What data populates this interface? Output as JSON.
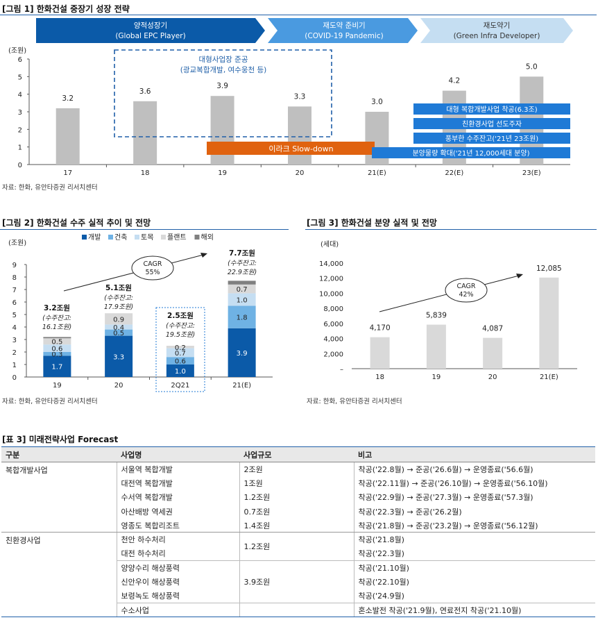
{
  "fig1": {
    "title": "[그림 1] 한화건설 중장기 성장 전략",
    "unit": "(조원)",
    "phases": [
      {
        "name": "양적성장기",
        "sub": "(Global EPC Player)"
      },
      {
        "name": "재도약 준비기",
        "sub": "(COVID-19 Pandemic)"
      },
      {
        "name": "재도약기",
        "sub": "(Green Infra Developer)"
      }
    ],
    "dashed_note": [
      "대형사업장 준공",
      "(광교복합개발, 여수웅천 등)"
    ],
    "iraq_label": "이라크 Slow-down",
    "blue_boxes": [
      "대형 복합개발사업 착공(6.3조)",
      "친환경사업 선도주자",
      "풍부한 수주잔고('21년 23조원)",
      "분양물량 확대('21년 12,000세대 분양)"
    ],
    "source": "자료: 한화, 유안타증권 리서치센터"
  },
  "fig2": {
    "title": "[그림 2] 한화건설 수주 실적 추이 및 전망",
    "unit": "(조원)",
    "totals": [
      "3.2조원",
      "5.1조원",
      "2.5조원",
      "7.7조원"
    ],
    "backlogs": [
      [
        "(수주잔고:",
        "16.1조원)"
      ],
      [
        "(수주잔고:",
        "17.9조원)"
      ],
      [
        "(수주잔고:",
        "19.5조원)"
      ],
      [
        "(수주잔고:",
        "22.9조원)"
      ]
    ],
    "cagr": [
      "CAGR",
      "55%"
    ],
    "source": "자료: 한화, 유안타증권 리서치센터"
  },
  "fig3": {
    "title": "[그림 3] 한화건설 분양 실적 및 전망",
    "unit": "(세대)",
    "cagr": [
      "CAGR",
      "42%"
    ],
    "source": "자료: 한화, 유안타증권 리서치센터"
  },
  "chart_data": [
    {
      "type": "bar",
      "categories": [
        "17",
        "18",
        "19",
        "20",
        "21(E)",
        "22(E)",
        "23(E)"
      ],
      "values": [
        3.2,
        3.6,
        3.9,
        3.3,
        3.0,
        4.2,
        5.0
      ],
      "value_labels": [
        "3.2",
        "3.6",
        "3.9",
        "3.3",
        "3.0",
        "4.2",
        "5.0"
      ],
      "ylim": [
        0,
        6
      ],
      "yticks": [
        "0",
        "1",
        "2",
        "3",
        "4",
        "5",
        "6"
      ],
      "grid": false,
      "color": "#bfbfbf"
    },
    {
      "type": "bar",
      "stacked": true,
      "categories": [
        "19",
        "20",
        "2Q21",
        "21(E)"
      ],
      "ylim": [
        0,
        9
      ],
      "yticks": [
        "0",
        "1",
        "2",
        "3",
        "4",
        "5",
        "6",
        "7",
        "8",
        "9"
      ],
      "legend_position": "top",
      "series": [
        {
          "name": "개발",
          "color": "#0b5aa8",
          "values": [
            1.7,
            3.3,
            1.0,
            3.9
          ],
          "labels": [
            "1.7",
            "3.3",
            "1.0",
            "3.9"
          ]
        },
        {
          "name": "건축",
          "color": "#6fb2e4",
          "values": [
            0.3,
            0.5,
            0.6,
            1.8
          ],
          "labels": [
            "0.3",
            "0.5",
            "0.6",
            "1.8"
          ]
        },
        {
          "name": "토목",
          "color": "#c5def2",
          "values": [
            0.6,
            0.4,
            0.7,
            1.0
          ],
          "labels": [
            "0.6",
            "0.4",
            "0.7",
            "1.0"
          ]
        },
        {
          "name": "플랜트",
          "color": "#d9d9d9",
          "values": [
            0.5,
            0.9,
            0.2,
            0.7
          ],
          "labels": [
            "0.5",
            "0.9",
            "0.2",
            "0.7"
          ]
        },
        {
          "name": "해외",
          "color": "#808080",
          "values": [
            0.1,
            0.0,
            0.0,
            0.3
          ],
          "labels": [
            "",
            "",
            "",
            ""
          ]
        }
      ]
    },
    {
      "type": "bar",
      "categories": [
        "18",
        "19",
        "20",
        "21(E)"
      ],
      "values": [
        4170,
        5839,
        4087,
        12085
      ],
      "value_labels": [
        "4,170",
        "5,839",
        "4,087",
        "12,085"
      ],
      "ylim": [
        0,
        14000
      ],
      "yticks": [
        "–",
        "2,000",
        "4,000",
        "6,000",
        "8,000",
        "10,000",
        "12,000",
        "14,000"
      ],
      "color": "#d9d9d9"
    }
  ],
  "table": {
    "title": "[표 3] 미래전략사업 Forecast",
    "headers": [
      "구분",
      "사업명",
      "사업규모",
      "비고"
    ],
    "groups": [
      {
        "category": "복합개발사업",
        "rows": [
          {
            "name": "서울역 복합개발",
            "scale": "2조원",
            "note": "착공('22.8월) → 준공('26.6월) → 운영종료('56.6월)"
          },
          {
            "name": "대전역 복합개발",
            "scale": "1조원",
            "note": "착공('22.11월) → 준공('26.10월) → 운영종료('56.10월)"
          },
          {
            "name": "수서역 복합개발",
            "scale": "1.2조원",
            "note": "착공('22.9월) → 준공('27.3월) → 운영종료('57.3월)"
          },
          {
            "name": "아산배방 역세권",
            "scale": "0.7조원",
            "note": "착공('22.3월) → 준공('26.2월)"
          },
          {
            "name": "영종도 복합리조트",
            "scale": "1.4조원",
            "note": "착공('21.8월) → 준공('23.2월) → 운영종료('56.12월)"
          }
        ]
      },
      {
        "category": "친환경사업",
        "rows": [
          {
            "name": "천안 하수처리",
            "note": "착공('21.8월)"
          },
          {
            "name": "대전 하수처리",
            "note": "착공('22.3월)"
          },
          {
            "name": "양양수리 해상풍력",
            "note": "착공('21.10월)"
          },
          {
            "name": "신안우이 해상풍력",
            "note": "착공('22.10월)"
          },
          {
            "name": "보령녹도 해상풍력",
            "note": "착공('24.9월)"
          },
          {
            "name": "수소사업",
            "note": "혼소발전 착공('21.9월), 연료전지 착공('21.10월)"
          }
        ],
        "merged_scales": [
          "1.2조원",
          "3.9조원"
        ]
      }
    ]
  }
}
